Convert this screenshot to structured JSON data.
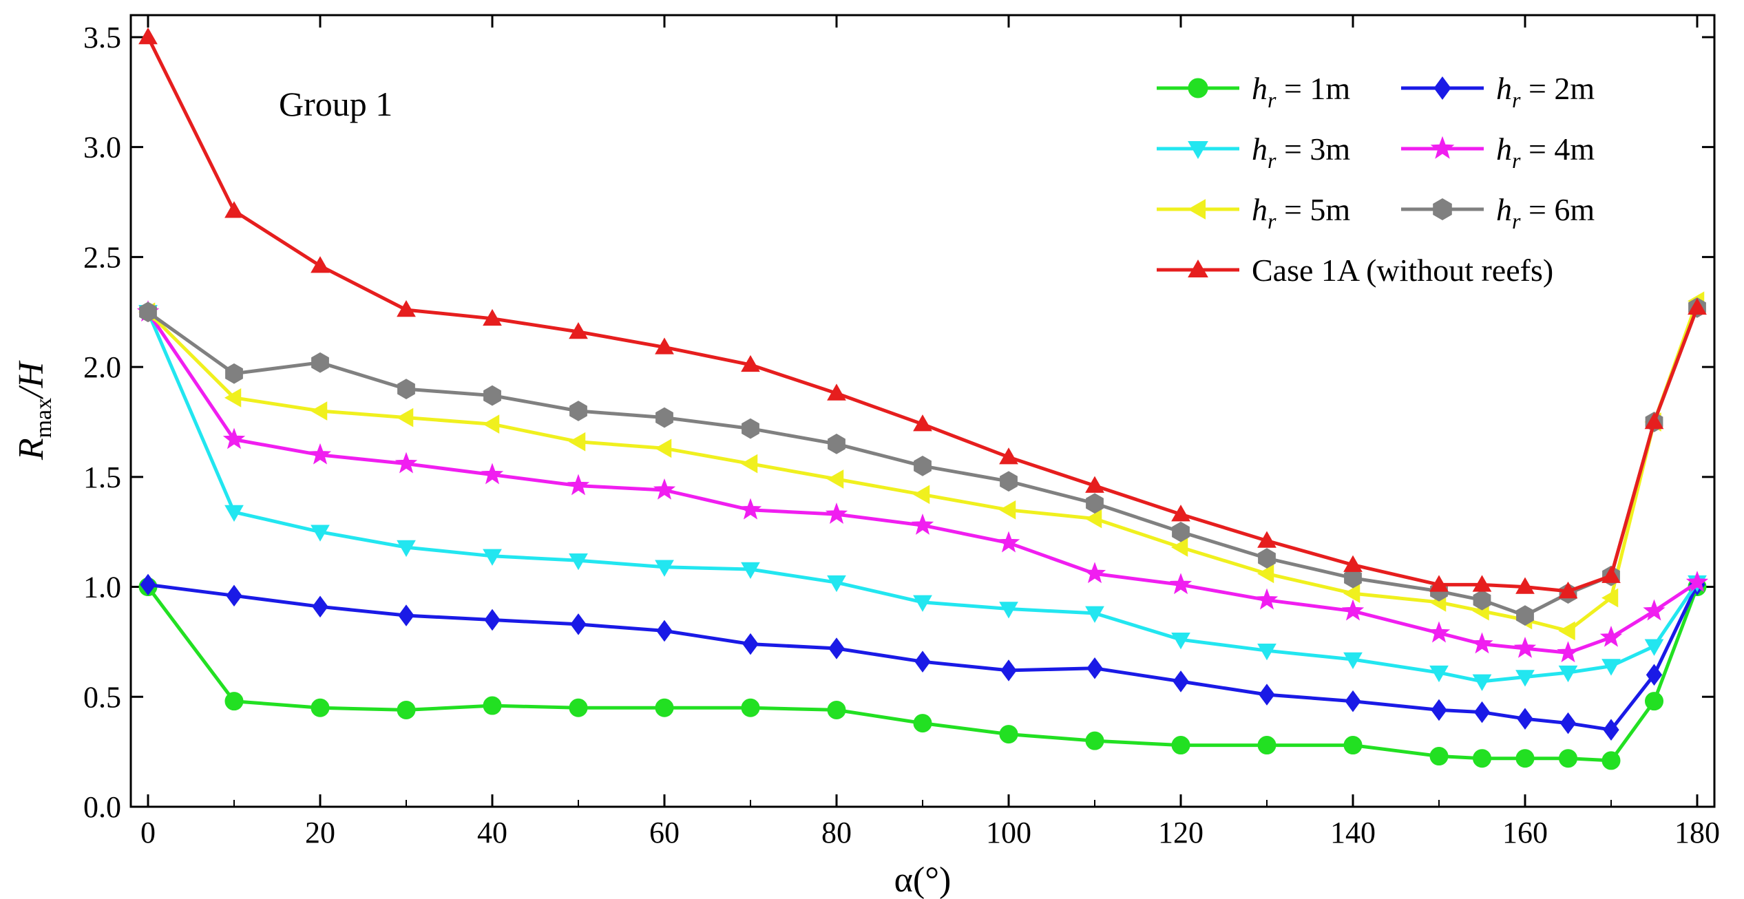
{
  "chart_data": {
    "type": "line",
    "title": "",
    "annotation": "Group 1",
    "xlabel": "α(°)",
    "ylabel": {
      "main": "R",
      "sub": "max",
      "rest": "/H"
    },
    "xlim": [
      -2,
      182
    ],
    "ylim": [
      0,
      3.6
    ],
    "xticks": [
      0,
      20,
      40,
      60,
      80,
      100,
      120,
      140,
      160,
      180
    ],
    "yticks": [
      0.0,
      0.5,
      1.0,
      1.5,
      2.0,
      2.5,
      3.0,
      3.5
    ],
    "ytick_labels": [
      "0.0",
      "0.5",
      "1.0",
      "1.5",
      "2.0",
      "2.5",
      "3.0",
      "3.5"
    ],
    "legend_position": "top-right",
    "x": [
      0,
      10,
      20,
      30,
      40,
      50,
      60,
      70,
      80,
      90,
      100,
      110,
      120,
      130,
      140,
      150,
      155,
      160,
      165,
      170,
      175,
      180
    ],
    "series": [
      {
        "name": "h_r = 1m",
        "label_var": "h",
        "label_sub": "r",
        "label_rest": " = 1m",
        "color": "#22e022",
        "marker": "circle",
        "values": [
          1.0,
          0.48,
          0.45,
          0.44,
          0.46,
          0.45,
          0.45,
          0.45,
          0.44,
          0.38,
          0.33,
          0.3,
          0.28,
          0.28,
          0.28,
          0.23,
          0.22,
          0.22,
          0.22,
          0.21,
          0.48,
          1.0
        ]
      },
      {
        "name": "h_r = 2m",
        "label_var": "h",
        "label_sub": "r",
        "label_rest": " = 2m",
        "color": "#1a1ae6",
        "marker": "diamond",
        "values": [
          1.01,
          0.96,
          0.91,
          0.87,
          0.85,
          0.83,
          0.8,
          0.74,
          0.72,
          0.66,
          0.62,
          0.63,
          0.57,
          0.51,
          0.48,
          0.44,
          0.43,
          0.4,
          0.38,
          0.35,
          0.6,
          1.01
        ]
      },
      {
        "name": "h_r = 3m",
        "label_var": "h",
        "label_sub": "r",
        "label_rest": " = 3m",
        "color": "#22e6f0",
        "marker": "triangle-down",
        "values": [
          2.25,
          1.34,
          1.25,
          1.18,
          1.14,
          1.12,
          1.09,
          1.08,
          1.02,
          0.93,
          0.9,
          0.88,
          0.76,
          0.71,
          0.67,
          0.61,
          0.57,
          0.59,
          0.61,
          0.64,
          0.73,
          1.02
        ]
      },
      {
        "name": "h_r = 4m",
        "label_var": "h",
        "label_sub": "r",
        "label_rest": " = 4m",
        "color": "#f01ef0",
        "marker": "star",
        "values": [
          2.25,
          1.67,
          1.6,
          1.56,
          1.51,
          1.46,
          1.44,
          1.35,
          1.33,
          1.28,
          1.2,
          1.06,
          1.01,
          0.94,
          0.89,
          0.79,
          0.74,
          0.72,
          0.7,
          0.77,
          0.89,
          1.02
        ]
      },
      {
        "name": "h_r = 5m",
        "label_var": "h",
        "label_sub": "r",
        "label_rest": " = 5m",
        "color": "#f0f01e",
        "marker": "triangle-left",
        "values": [
          2.25,
          1.86,
          1.8,
          1.77,
          1.74,
          1.66,
          1.63,
          1.56,
          1.49,
          1.42,
          1.35,
          1.31,
          1.18,
          1.06,
          0.97,
          0.93,
          0.89,
          0.85,
          0.8,
          0.95,
          1.75,
          2.3
        ]
      },
      {
        "name": "h_r = 6m",
        "label_var": "h",
        "label_sub": "r",
        "label_rest": " = 6m",
        "color": "#808080",
        "marker": "hexagon",
        "values": [
          2.25,
          1.97,
          2.02,
          1.9,
          1.87,
          1.8,
          1.77,
          1.72,
          1.65,
          1.55,
          1.48,
          1.38,
          1.25,
          1.13,
          1.04,
          0.98,
          0.94,
          0.87,
          0.97,
          1.05,
          1.75,
          2.27
        ]
      },
      {
        "name": "Case 1A (without reefs)",
        "label_var": "",
        "label_sub": "",
        "label_rest": "Case 1A (without reefs)",
        "color": "#e61e1e",
        "marker": "triangle-up",
        "values": [
          3.5,
          2.71,
          2.46,
          2.26,
          2.22,
          2.16,
          2.09,
          2.01,
          1.88,
          1.74,
          1.59,
          1.46,
          1.33,
          1.21,
          1.1,
          1.01,
          1.01,
          1.0,
          0.98,
          1.05,
          1.75,
          2.27
        ]
      }
    ]
  }
}
